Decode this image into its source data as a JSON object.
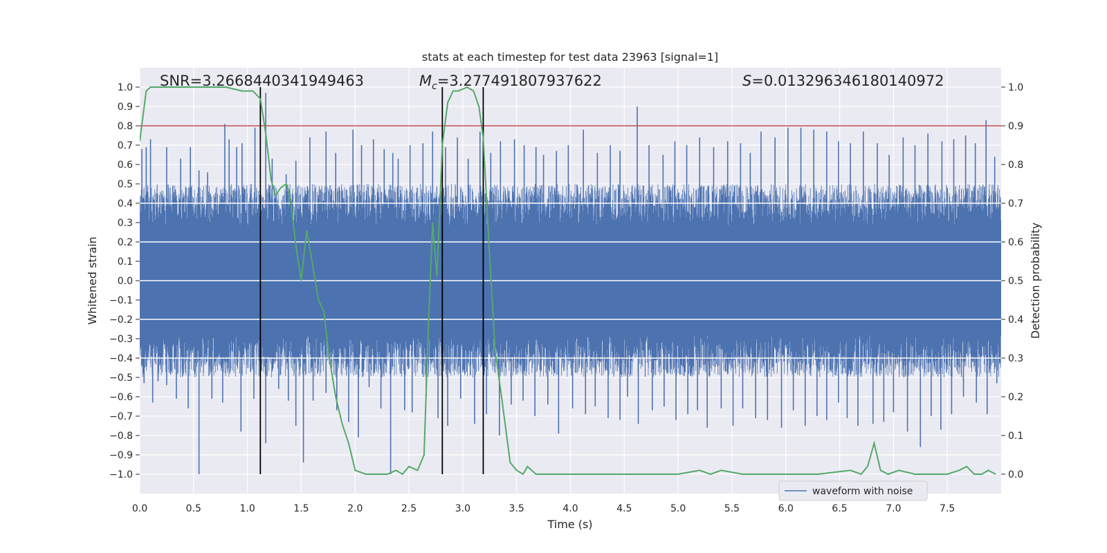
{
  "chart_data": {
    "type": "line",
    "title": "stats at each timestep for test data 23963 [signal=1]",
    "xlabel": "Time (s)",
    "ylabel": "Whitened strain",
    "y2label": "Detection probability",
    "xlim": [
      0.0,
      8.0
    ],
    "ylim": [
      -1.1,
      1.1
    ],
    "y2lim": [
      -0.05,
      1.05
    ],
    "xticks": [
      0.0,
      0.5,
      1.0,
      1.5,
      2.0,
      2.5,
      3.0,
      3.5,
      4.0,
      4.5,
      5.0,
      5.5,
      6.0,
      6.5,
      7.0,
      7.5
    ],
    "yticks": [
      -1.0,
      -0.9,
      -0.8,
      -0.7,
      -0.6,
      -0.5,
      -0.4,
      -0.3,
      -0.2,
      -0.1,
      0.0,
      0.1,
      0.2,
      0.3,
      0.4,
      0.5,
      0.6,
      0.7,
      0.8,
      0.9,
      1.0
    ],
    "y2ticks": [
      0.0,
      0.1,
      0.2,
      0.3,
      0.4,
      0.5,
      0.6,
      0.7,
      0.8,
      0.9,
      1.0
    ],
    "annotations": {
      "snr": "SNR=3.2668440341949463",
      "mc_symbol": "M",
      "mc_sub": "c",
      "mc_value": "=3.277491807937622",
      "s_symbol": "S",
      "s_value": "=0.013296346180140972"
    },
    "threshold_line": {
      "y2": 0.9,
      "color": "#c44e52"
    },
    "vertical_lines": [
      1.12,
      2.81,
      3.19
    ],
    "waveform": {
      "name": "waveform with noise",
      "color": "#4c72b0",
      "spikes_pos": [
        [
          0.02,
          0.68
        ],
        [
          0.06,
          0.69
        ],
        [
          0.1,
          0.73
        ],
        [
          0.25,
          0.69
        ],
        [
          0.38,
          0.63
        ],
        [
          0.47,
          0.69
        ],
        [
          0.55,
          0.57
        ],
        [
          0.63,
          0.56
        ],
        [
          0.79,
          0.81
        ],
        [
          0.83,
          0.73
        ],
        [
          0.9,
          0.69
        ],
        [
          0.95,
          0.71
        ],
        [
          1.07,
          0.79
        ],
        [
          1.17,
          0.97
        ],
        [
          1.23,
          0.63
        ],
        [
          1.36,
          0.55
        ],
        [
          1.45,
          0.62
        ],
        [
          1.58,
          0.74
        ],
        [
          1.73,
          0.77
        ],
        [
          1.82,
          0.66
        ],
        [
          1.98,
          0.78
        ],
        [
          2.06,
          0.7
        ],
        [
          2.17,
          0.73
        ],
        [
          2.27,
          0.68
        ],
        [
          2.35,
          0.66
        ],
        [
          2.4,
          0.63
        ],
        [
          2.51,
          0.7
        ],
        [
          2.63,
          0.71
        ],
        [
          2.72,
          0.77
        ],
        [
          2.84,
          0.69
        ],
        [
          2.95,
          0.74
        ],
        [
          3.05,
          0.63
        ],
        [
          3.16,
          0.77
        ],
        [
          3.26,
          0.66
        ],
        [
          3.35,
          0.72
        ],
        [
          3.48,
          0.73
        ],
        [
          3.57,
          0.7
        ],
        [
          3.68,
          0.69
        ],
        [
          3.75,
          0.65
        ],
        [
          3.87,
          0.67
        ],
        [
          3.98,
          0.7
        ],
        [
          4.12,
          0.78
        ],
        [
          4.25,
          0.66
        ],
        [
          4.37,
          0.7
        ],
        [
          4.46,
          0.67
        ],
        [
          4.62,
          0.9
        ],
        [
          4.73,
          0.7
        ],
        [
          4.86,
          0.65
        ],
        [
          4.97,
          0.72
        ],
        [
          5.08,
          0.7
        ],
        [
          5.2,
          0.74
        ],
        [
          5.33,
          0.69
        ],
        [
          5.46,
          0.72
        ],
        [
          5.58,
          0.71
        ],
        [
          5.67,
          0.66
        ],
        [
          5.77,
          0.77
        ],
        [
          5.9,
          0.74
        ],
        [
          6.02,
          0.79
        ],
        [
          6.14,
          0.79
        ],
        [
          6.26,
          0.78
        ],
        [
          6.38,
          0.77
        ],
        [
          6.49,
          0.72
        ],
        [
          6.6,
          0.71
        ],
        [
          6.72,
          0.77
        ],
        [
          6.85,
          0.71
        ],
        [
          6.96,
          0.65
        ],
        [
          7.09,
          0.74
        ],
        [
          7.2,
          0.7
        ],
        [
          7.32,
          0.76
        ],
        [
          7.45,
          0.72
        ],
        [
          7.56,
          0.73
        ],
        [
          7.67,
          0.75
        ],
        [
          7.76,
          0.71
        ],
        [
          7.86,
          0.83
        ],
        [
          7.94,
          0.64
        ]
      ],
      "spikes_neg": [
        [
          0.04,
          -0.53
        ],
        [
          0.12,
          -0.63
        ],
        [
          0.17,
          -0.52
        ],
        [
          0.25,
          -0.54
        ],
        [
          0.34,
          -0.61
        ],
        [
          0.45,
          -0.66
        ],
        [
          0.55,
          -1.0
        ],
        [
          0.67,
          -0.61
        ],
        [
          0.77,
          -0.63
        ],
        [
          0.94,
          -0.78
        ],
        [
          1.06,
          -0.61
        ],
        [
          1.17,
          -0.84
        ],
        [
          1.29,
          -0.56
        ],
        [
          1.38,
          -0.62
        ],
        [
          1.45,
          -0.75
        ],
        [
          1.52,
          -0.94
        ],
        [
          1.61,
          -0.62
        ],
        [
          1.73,
          -0.58
        ],
        [
          1.83,
          -0.67
        ],
        [
          1.94,
          -0.73
        ],
        [
          2.03,
          -0.81
        ],
        [
          2.13,
          -0.55
        ],
        [
          2.24,
          -0.66
        ],
        [
          2.33,
          -1.0
        ],
        [
          2.46,
          -0.67
        ],
        [
          2.53,
          -0.68
        ],
        [
          2.66,
          -0.6
        ],
        [
          2.77,
          -0.71
        ],
        [
          2.86,
          -0.75
        ],
        [
          2.98,
          -0.61
        ],
        [
          3.11,
          -0.74
        ],
        [
          3.22,
          -0.69
        ],
        [
          3.34,
          -0.8
        ],
        [
          3.45,
          -0.64
        ],
        [
          3.56,
          -0.62
        ],
        [
          3.67,
          -0.7
        ],
        [
          3.79,
          -0.64
        ],
        [
          3.89,
          -0.79
        ],
        [
          4.02,
          -0.66
        ],
        [
          4.14,
          -0.69
        ],
        [
          4.23,
          -0.65
        ],
        [
          4.35,
          -0.71
        ],
        [
          4.46,
          -0.72
        ],
        [
          4.53,
          -0.6
        ],
        [
          4.63,
          -0.74
        ],
        [
          4.76,
          -0.67
        ],
        [
          4.87,
          -0.65
        ],
        [
          4.98,
          -0.72
        ],
        [
          5.09,
          -0.69
        ],
        [
          5.18,
          -0.67
        ],
        [
          5.27,
          -0.76
        ],
        [
          5.4,
          -0.66
        ],
        [
          5.51,
          -0.75
        ],
        [
          5.6,
          -0.66
        ],
        [
          5.72,
          -0.71
        ],
        [
          5.83,
          -0.72
        ],
        [
          5.96,
          -0.76
        ],
        [
          6.07,
          -0.67
        ],
        [
          6.18,
          -0.75
        ],
        [
          6.29,
          -0.7
        ],
        [
          6.38,
          -0.72
        ],
        [
          6.49,
          -0.63
        ],
        [
          6.57,
          -0.71
        ],
        [
          6.67,
          -0.75
        ],
        [
          6.81,
          -0.74
        ],
        [
          6.91,
          -0.73
        ],
        [
          7.0,
          -0.68
        ],
        [
          7.13,
          -0.78
        ],
        [
          7.25,
          -0.86
        ],
        [
          7.35,
          -0.7
        ],
        [
          7.44,
          -0.77
        ],
        [
          7.54,
          -0.69
        ],
        [
          7.65,
          -0.6
        ],
        [
          7.77,
          -0.63
        ],
        [
          7.87,
          -0.69
        ],
        [
          7.96,
          -0.53
        ]
      ]
    },
    "probability": {
      "color": "#55a868",
      "x": [
        0.0,
        0.06,
        0.1,
        0.2,
        0.4,
        0.6,
        0.8,
        0.95,
        1.05,
        1.12,
        1.17,
        1.22,
        1.26,
        1.31,
        1.36,
        1.4,
        1.45,
        1.5,
        1.55,
        1.6,
        1.66,
        1.71,
        1.76,
        1.82,
        1.88,
        1.94,
        2.0,
        2.1,
        2.2,
        2.3,
        2.38,
        2.44,
        2.5,
        2.58,
        2.64,
        2.68,
        2.72,
        2.76,
        2.81,
        2.86,
        2.91,
        2.96,
        3.04,
        3.1,
        3.15,
        3.19,
        3.24,
        3.3,
        3.36,
        3.44,
        3.5,
        3.56,
        3.6,
        3.68,
        3.8,
        4.0,
        4.3,
        4.6,
        4.9,
        5.0,
        5.2,
        5.3,
        5.4,
        5.6,
        6.0,
        6.3,
        6.6,
        6.7,
        6.76,
        6.82,
        6.88,
        6.95,
        7.05,
        7.2,
        7.4,
        7.5,
        7.61,
        7.68,
        7.75,
        7.82,
        7.88,
        7.95
      ],
      "y": [
        0.86,
        0.99,
        1.0,
        1.0,
        1.0,
        1.0,
        1.0,
        0.99,
        0.99,
        0.97,
        0.88,
        0.76,
        0.72,
        0.74,
        0.75,
        0.71,
        0.59,
        0.5,
        0.63,
        0.55,
        0.45,
        0.42,
        0.3,
        0.2,
        0.13,
        0.08,
        0.01,
        0.0,
        0.0,
        0.0,
        0.01,
        0.0,
        0.02,
        0.01,
        0.05,
        0.38,
        0.65,
        0.51,
        0.85,
        0.96,
        0.99,
        0.99,
        1.0,
        0.99,
        0.95,
        0.87,
        0.61,
        0.32,
        0.2,
        0.03,
        0.01,
        0.0,
        0.02,
        0.0,
        0.0,
        0.0,
        0.0,
        0.0,
        0.0,
        0.0,
        0.01,
        0.0,
        0.01,
        0.0,
        0.0,
        0.0,
        0.01,
        0.0,
        0.02,
        0.08,
        0.01,
        0.0,
        0.01,
        0.0,
        0.0,
        0.0,
        0.01,
        0.02,
        0.0,
        0.0,
        0.01,
        0.0
      ]
    },
    "legend": {
      "entries": [
        "waveform with noise"
      ],
      "placement": "lower-right"
    }
  }
}
